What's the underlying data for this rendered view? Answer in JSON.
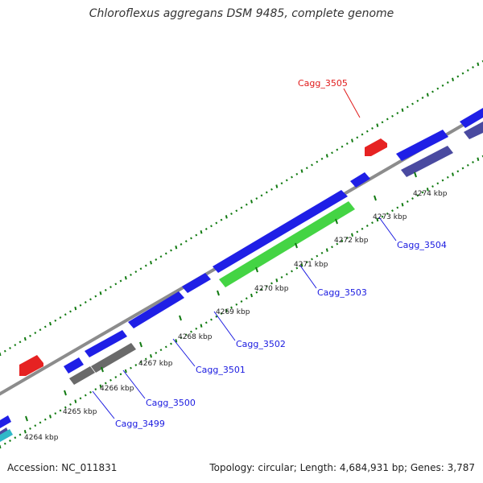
{
  "title": "Chloroflexus aggregans DSM 9485, complete genome",
  "footer": {
    "accession": "Accession: NC_011831",
    "summary": "Topology: circular; Length: 4,684,931 bp; Genes: 3,787"
  },
  "colors": {
    "forward_cds": "#1f1fe6",
    "reverse_cds": "#4a4aa0",
    "highlight": "#44d444",
    "rna": "#6a6a6a",
    "other": "#e62222",
    "backbone": "#8c8c8c",
    "tick": "#117a11",
    "label_blue": "#1a1ae0",
    "label_red": "#e01a1a"
  },
  "scale": {
    "ticks": [
      "4264 kbp",
      "4265 kbp",
      "4266 kbp",
      "4267 kbp",
      "4268 kbp",
      "4269 kbp",
      "4270 kbp",
      "4271 kbp",
      "4272 kbp",
      "4273 kbp",
      "4274 kbp"
    ]
  },
  "gene_labels": [
    {
      "text": "Cagg_3499",
      "color": "blue"
    },
    {
      "text": "Cagg_3500",
      "color": "blue"
    },
    {
      "text": "Cagg_3501",
      "color": "blue"
    },
    {
      "text": "Cagg_3502",
      "color": "blue"
    },
    {
      "text": "Cagg_3503",
      "color": "blue"
    },
    {
      "text": "Cagg_3504",
      "color": "blue"
    },
    {
      "text": "Cagg_3505",
      "color": "red"
    }
  ]
}
